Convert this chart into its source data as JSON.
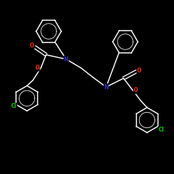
{
  "background_color": "#000000",
  "bond_color": "#ffffff",
  "atom_colors": {
    "N": "#3333cc",
    "O": "#ff2200",
    "Cl": "#00cc00",
    "C": "#ffffff"
  },
  "figsize": [
    2.5,
    2.5
  ],
  "dpi": 100,
  "lw": 1.1
}
